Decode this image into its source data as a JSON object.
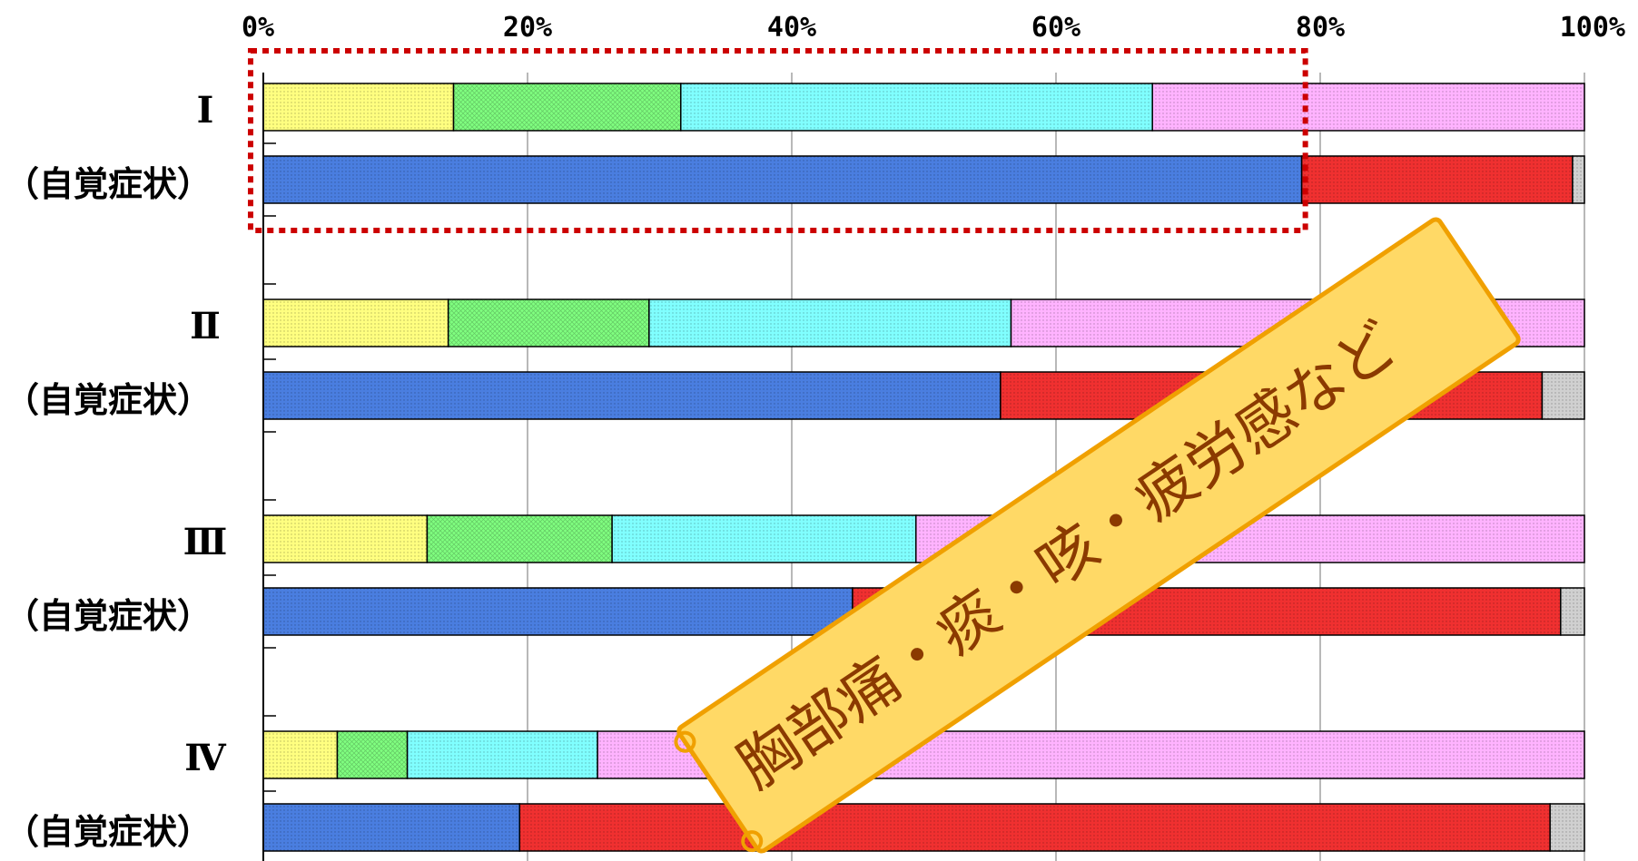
{
  "chart_data": {
    "type": "bar",
    "orientation": "horizontal",
    "stacked": true,
    "normalized": true,
    "xlim": [
      0,
      100
    ],
    "x_ticks": [
      "0%",
      "20%",
      "40%",
      "60%",
      "80%",
      "100%"
    ],
    "grid": true,
    "groups": [
      {
        "label": "Ⅰ",
        "sublabel": "（自覚症状）",
        "bars": [
          [
            14.4,
            17.2,
            35.7,
            32.7
          ],
          [
            78.6,
            20.5,
            0.9
          ]
        ]
      },
      {
        "label": "Ⅱ",
        "sublabel": "（自覚症状）",
        "bars": [
          [
            14.0,
            15.2,
            27.4,
            43.4
          ],
          [
            55.8,
            41.0,
            3.2
          ]
        ]
      },
      {
        "label": "Ⅲ",
        "sublabel": "（自覚症状）",
        "bars": [
          [
            12.4,
            14.0,
            23.0,
            50.6
          ],
          [
            44.6,
            53.6,
            1.8
          ]
        ]
      },
      {
        "label": "Ⅳ",
        "sublabel": "（自覚症状）",
        "bars": [
          [
            5.6,
            5.3,
            14.4,
            74.7
          ],
          [
            19.4,
            78.0,
            2.6
          ]
        ]
      }
    ],
    "upper_bar_colors": [
      "#ffff80",
      "#80ff80",
      "#80ffff",
      "#ffb3ff"
    ],
    "lower_bar_colors": [
      "#4a7ee0",
      "#f03030",
      "#d0d0d0"
    ],
    "highlight_box": {
      "x_from": 0,
      "x_to": 78.6,
      "group": 0,
      "color": "#cc0000"
    }
  },
  "banner": {
    "text": "胸部痛・痰・咳・疲労感など",
    "fill": "#ffd966",
    "border": "#f0a000",
    "text_color": "#8b3a00"
  }
}
